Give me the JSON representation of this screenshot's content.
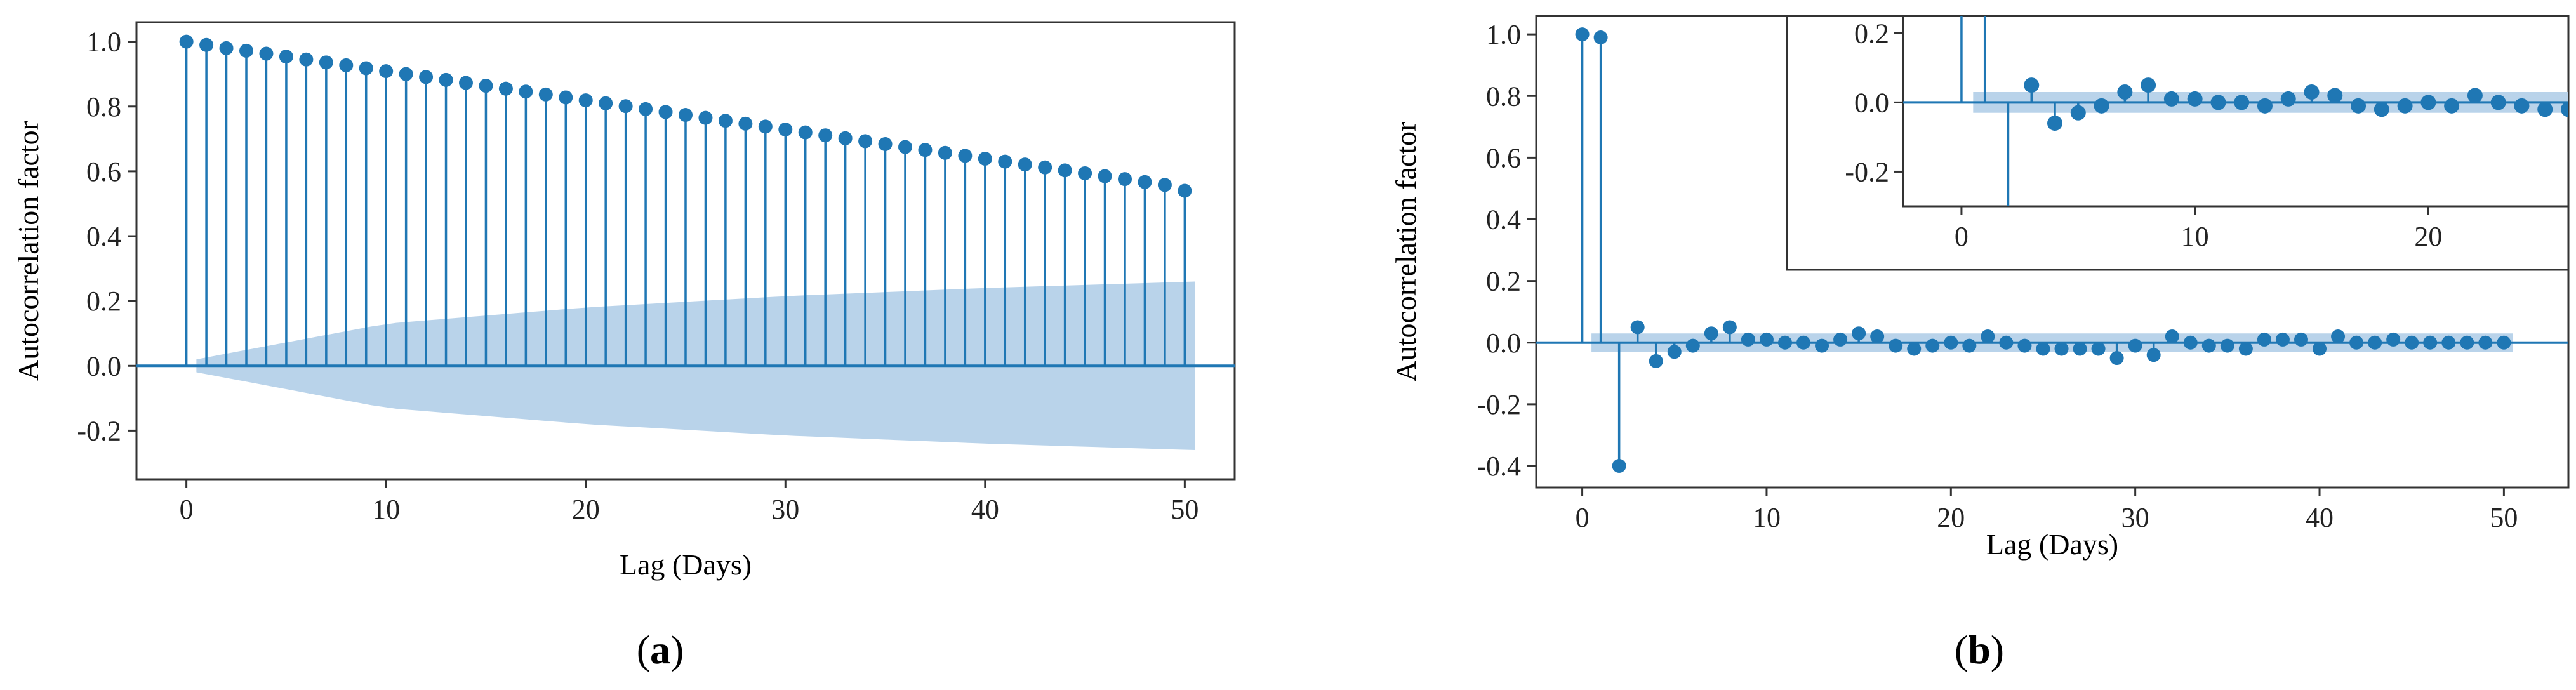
{
  "chart_data": [
    {
      "type": "stem",
      "panel": "a",
      "caption_letter": "a",
      "title": "",
      "xlabel": "Lag (Days)",
      "ylabel": "Autocorrelation factor",
      "xlim": [
        -2.5,
        52.5
      ],
      "ylim": [
        -0.35,
        1.06
      ],
      "xticks": [
        0,
        10,
        20,
        30,
        40,
        50
      ],
      "yticks": [
        -0.2,
        0.0,
        0.2,
        0.4,
        0.6,
        0.8,
        1.0
      ],
      "ytick_labels": [
        "-0.2",
        "0.0",
        "0.2",
        "0.4",
        "0.6",
        "0.8",
        "1.0"
      ],
      "lags": [
        0,
        1,
        2,
        3,
        4,
        5,
        6,
        7,
        8,
        9,
        10,
        11,
        12,
        13,
        14,
        15,
        16,
        17,
        18,
        19,
        20,
        21,
        22,
        23,
        24,
        25,
        26,
        27,
        28,
        29,
        30,
        31,
        32,
        33,
        34,
        35,
        36,
        37,
        38,
        39,
        40,
        41,
        42,
        43,
        44,
        45,
        46,
        47,
        48,
        49,
        50
      ],
      "values": [
        1.0,
        0.99,
        0.98,
        0.972,
        0.963,
        0.954,
        0.945,
        0.936,
        0.927,
        0.918,
        0.909,
        0.9,
        0.891,
        0.882,
        0.873,
        0.864,
        0.855,
        0.846,
        0.837,
        0.828,
        0.819,
        0.81,
        0.801,
        0.792,
        0.783,
        0.774,
        0.765,
        0.756,
        0.747,
        0.738,
        0.729,
        0.72,
        0.711,
        0.702,
        0.693,
        0.684,
        0.675,
        0.666,
        0.657,
        0.648,
        0.639,
        0.63,
        0.621,
        0.612,
        0.603,
        0.594,
        0.585,
        0.576,
        0.567,
        0.558,
        0.54
      ],
      "confidence_band": {
        "x": [
          0.5,
          10,
          20,
          30,
          40,
          50.5
        ],
        "upper": [
          0.02,
          0.13,
          0.18,
          0.215,
          0.24,
          0.26
        ]
      }
    },
    {
      "type": "stem",
      "panel": "b",
      "caption_letter": "b",
      "title": "",
      "xlabel": "Lag (Days)",
      "ylabel": "Autocorrelation factor",
      "xlim": [
        -2.5,
        53.5
      ],
      "ylim": [
        -0.47,
        1.06
      ],
      "xticks": [
        0,
        10,
        20,
        30,
        40,
        50
      ],
      "yticks": [
        -0.4,
        -0.2,
        0.0,
        0.2,
        0.4,
        0.6,
        0.8,
        1.0
      ],
      "ytick_labels": [
        "-0.4",
        "-0.2",
        "0.0",
        "0.2",
        "0.4",
        "0.6",
        "0.8",
        "1.0"
      ],
      "lags": [
        0,
        1,
        2,
        3,
        4,
        5,
        6,
        7,
        8,
        9,
        10,
        11,
        12,
        13,
        14,
        15,
        16,
        17,
        18,
        19,
        20,
        21,
        22,
        23,
        24,
        25,
        26,
        27,
        28,
        29,
        30,
        31,
        32,
        33,
        34,
        35,
        36,
        37,
        38,
        39,
        40,
        41,
        42,
        43,
        44,
        45,
        46,
        47,
        48,
        49,
        50
      ],
      "values": [
        1.0,
        0.99,
        -0.4,
        0.05,
        -0.06,
        -0.03,
        -0.01,
        0.03,
        0.05,
        0.01,
        0.01,
        0.0,
        0.0,
        -0.01,
        0.01,
        0.03,
        0.02,
        -0.01,
        -0.02,
        -0.01,
        0.0,
        -0.01,
        0.02,
        0.0,
        -0.01,
        -0.02,
        -0.02,
        -0.02,
        -0.02,
        -0.05,
        -0.01,
        -0.04,
        0.02,
        0.0,
        -0.01,
        -0.01,
        -0.02,
        0.01,
        0.01,
        0.01,
        -0.02,
        0.02,
        0.0,
        0.0,
        0.01,
        0.0,
        0.0,
        0.0,
        0.0,
        0.0,
        0.0
      ],
      "confidence_band": {
        "x": [
          0.5,
          50.5
        ],
        "upper": [
          0.03,
          0.03
        ]
      },
      "inset": {
        "xlim": [
          -2.5,
          26
        ],
        "ylim": [
          -0.3,
          0.25
        ],
        "xticks": [
          0,
          10,
          20
        ],
        "yticks": [
          -0.2,
          0.0,
          0.2
        ],
        "ytick_labels": [
          "-0.2",
          "0.0",
          "0.2"
        ]
      }
    }
  ]
}
